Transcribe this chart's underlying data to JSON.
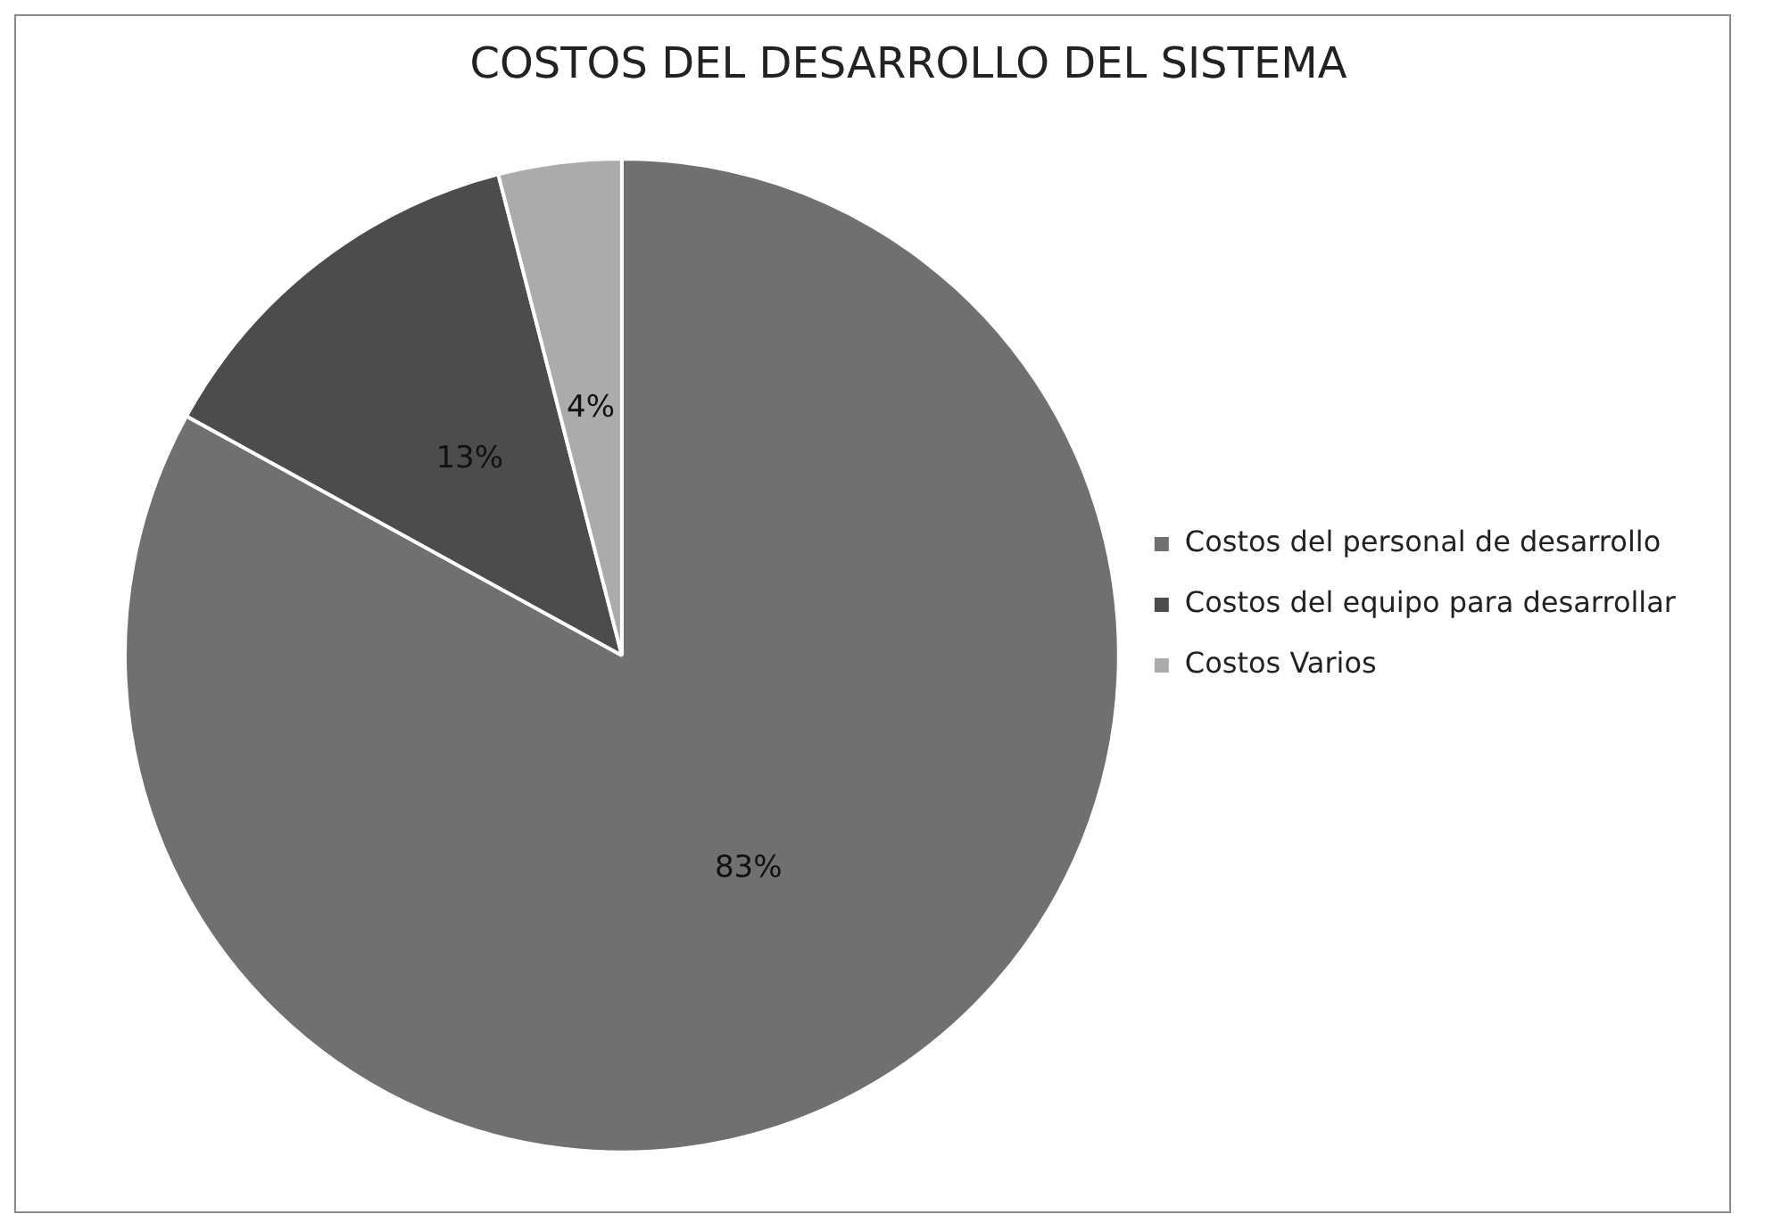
{
  "chart_data": {
    "type": "pie",
    "title": "COSTOS DEL DESARROLLO DEL SISTEMA",
    "categories": [
      "Costos del personal de desarrollo",
      "Costos del equipo para desarrollar",
      "Costos Varios"
    ],
    "values": [
      83,
      13,
      4
    ],
    "colors": [
      "#707070",
      "#4c4c4c",
      "#ababab"
    ],
    "value_labels": [
      "83%",
      "13%",
      "4%"
    ],
    "legend": "right"
  }
}
